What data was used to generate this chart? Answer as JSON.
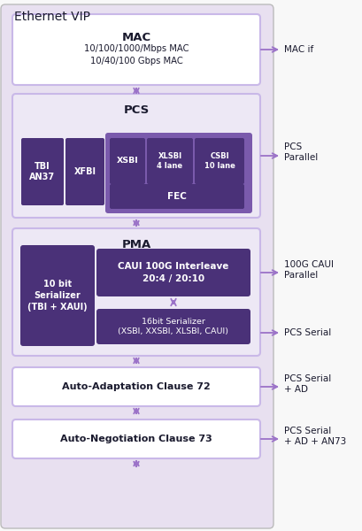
{
  "title": "Ethernet VIP",
  "bg_outer": "#e8e0f0",
  "bg_white_box": "#ffffff",
  "bg_light": "#ede8f5",
  "purple_dark": "#4a3178",
  "purple_mid": "#7a5aac",
  "purple_light": "#c9b8e8",
  "arrow_color": "#9b72c8",
  "text_dark": "#1a1a2e",
  "text_white": "#ffffff",
  "mac_title": "MAC",
  "mac_sub": "10/100/1000/Mbps MAC\n10/40/100 Gbps MAC",
  "pcs_title": "PCS",
  "pma_title": "PMA",
  "fec_label": "FEC",
  "caui_label": "CAUI 100G Interleave\n20:4 / 20:10",
  "serializer10_label": "10 bit\nSerializer\n(TBI + XAUI)",
  "serializer16_label": "16bit Serializer\n(XSBI, XXSBI, XLSBI, CAUI)",
  "adapt_label": "Auto-Adaptation Clause 72",
  "nego_label": "Auto-Negotiation Clause 73",
  "mac_if": "MAC if",
  "pcs_parallel": "PCS\nParallel",
  "caui_parallel": "100G CAUI\nParallel",
  "pcs_serial": "PCS Serial",
  "pcs_serial_ad": "PCS Serial\n+ AD",
  "pcs_serial_an73": "PCS Serial\n+ AD + AN73"
}
